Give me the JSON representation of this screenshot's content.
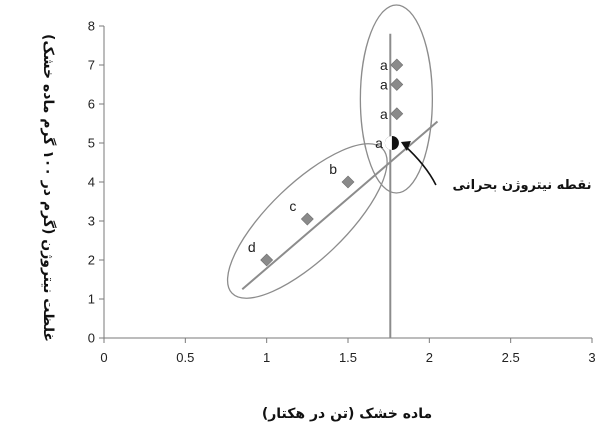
{
  "chart_data": {
    "type": "scatter",
    "xlabel": "ماده خشک (تن در هکتار)",
    "ylabel": "غلظت نیتروژن (گرم در ۱۰۰ گرم ماده خشک)",
    "xlim": [
      0,
      3
    ],
    "ylim": [
      0,
      8
    ],
    "xticks": [
      "0",
      "0.5",
      "1",
      "1.5",
      "2",
      "2.5",
      "3"
    ],
    "yticks": [
      "0",
      "1",
      "2",
      "3",
      "4",
      "5",
      "6",
      "7",
      "8"
    ],
    "grid": false,
    "points": [
      {
        "x": 1.0,
        "y": 2.0,
        "label": "d"
      },
      {
        "x": 1.25,
        "y": 3.05,
        "label": "c"
      },
      {
        "x": 1.5,
        "y": 4.0,
        "label": "b"
      },
      {
        "x": 1.77,
        "y": 5.0,
        "label": "a"
      },
      {
        "x": 1.8,
        "y": 5.75,
        "label": "a"
      },
      {
        "x": 1.8,
        "y": 6.5,
        "label": "a"
      },
      {
        "x": 1.8,
        "y": 7.0,
        "label": "a"
      }
    ],
    "critical_point": {
      "x": 1.77,
      "y": 5.0
    },
    "regression_line": {
      "x": [
        0.85,
        2.05
      ],
      "y": [
        1.25,
        5.55
      ]
    },
    "vertical_line": {
      "x": 1.76,
      "y": [
        0,
        7.8
      ]
    },
    "annotation": "نقطه نیتروژن بحرانی",
    "colors": {
      "marker": "#8a8a8a",
      "line": "#8c8c8c",
      "ellipse": "#8c8c8c",
      "axis": "#7a7a7a"
    }
  }
}
